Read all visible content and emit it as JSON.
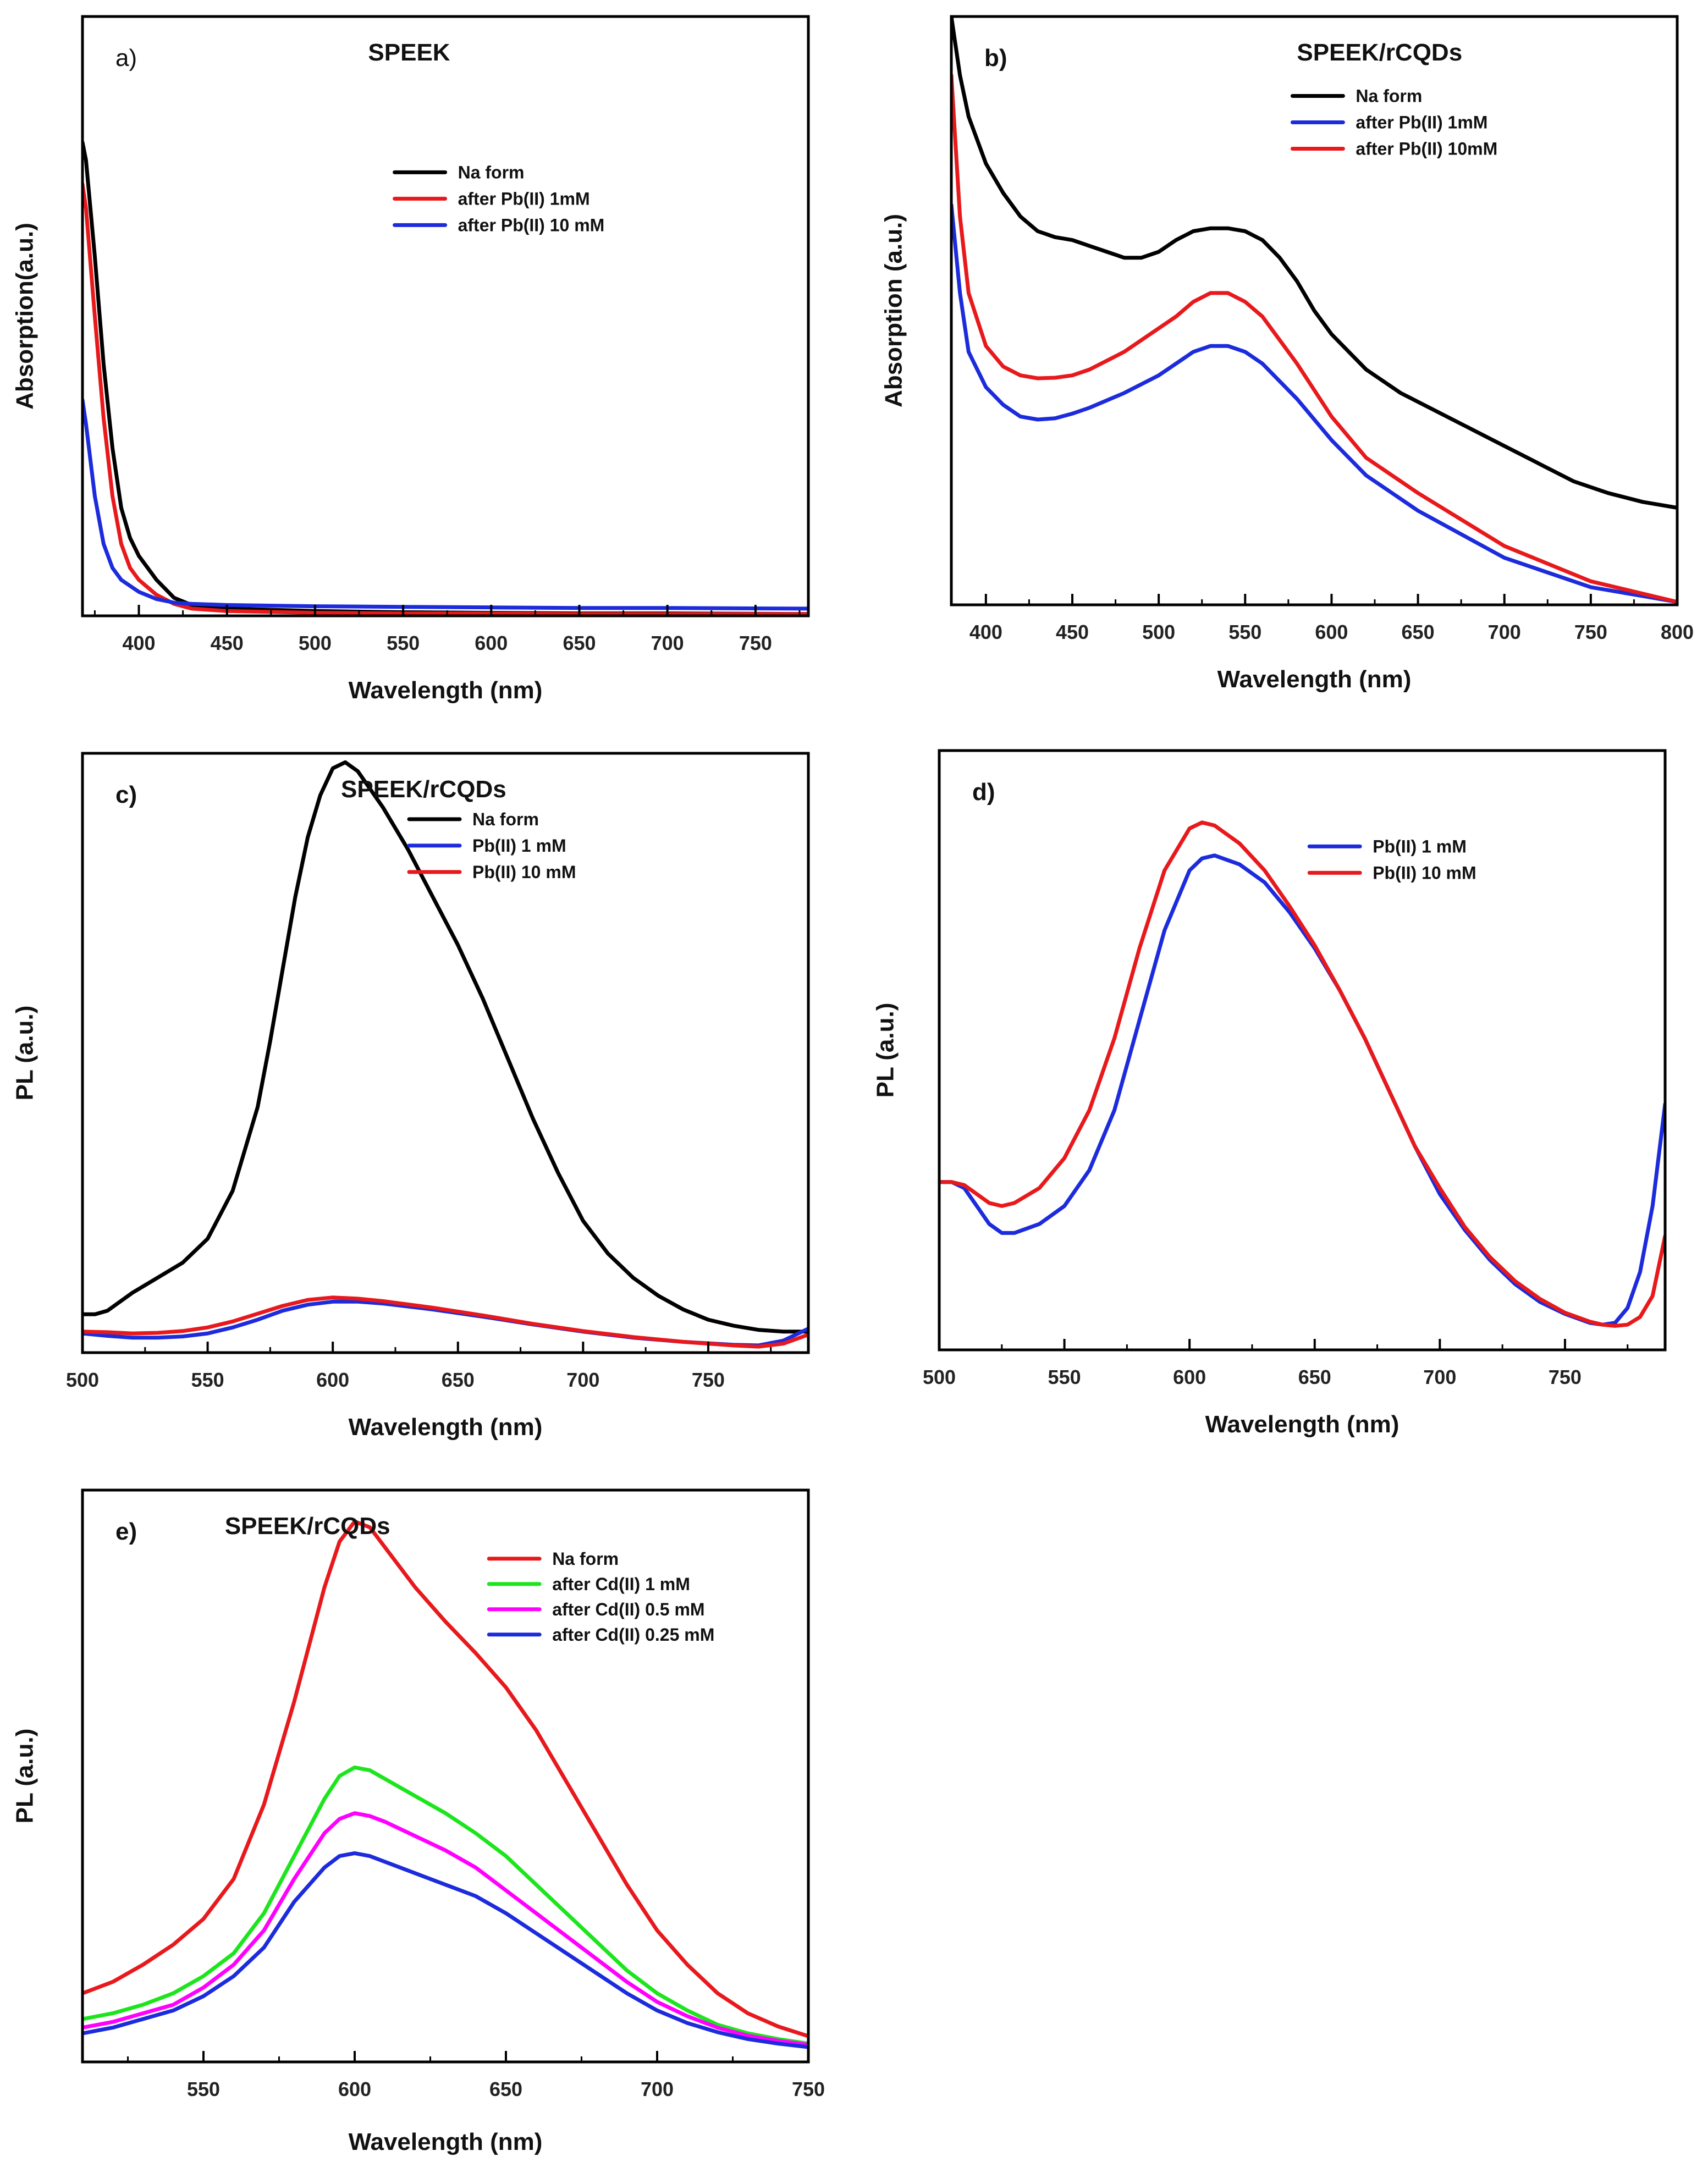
{
  "chart_data": [
    {
      "id": "a",
      "type": "line",
      "panel_letter": "a)",
      "title": "SPEEK",
      "xlabel": "Wavelength (nm)",
      "ylabel": "Absorption(a.u.)",
      "xlim": [
        368,
        780
      ],
      "ylim": [
        0,
        1.0
      ],
      "xticks": [
        400,
        450,
        500,
        550,
        600,
        650,
        700,
        750
      ],
      "legend_position": "top-center",
      "series": [
        {
          "name": "Na form",
          "color": "#000000",
          "x": [
            368,
            370,
            375,
            380,
            385,
            390,
            395,
            400,
            410,
            420,
            430,
            450,
            500,
            550,
            600,
            650,
            700,
            780
          ],
          "y": [
            0.79,
            0.76,
            0.6,
            0.42,
            0.28,
            0.18,
            0.13,
            0.1,
            0.06,
            0.03,
            0.018,
            0.012,
            0.008,
            0.006,
            0.005,
            0.004,
            0.004,
            0.003
          ]
        },
        {
          "name": "after Pb(II) 1mM",
          "color": "#e8191c",
          "x": [
            368,
            370,
            375,
            380,
            385,
            390,
            395,
            400,
            410,
            420,
            430,
            450,
            500,
            550,
            600,
            650,
            700,
            780
          ],
          "y": [
            0.72,
            0.68,
            0.5,
            0.33,
            0.2,
            0.12,
            0.08,
            0.06,
            0.035,
            0.02,
            0.012,
            0.008,
            0.005,
            0.004,
            0.004,
            0.003,
            0.003,
            0.003
          ]
        },
        {
          "name": "after Pb(II) 10 mM",
          "color": "#1c2bdc",
          "x": [
            368,
            370,
            375,
            380,
            385,
            390,
            395,
            400,
            410,
            420,
            430,
            450,
            500,
            550,
            600,
            650,
            700,
            780
          ],
          "y": [
            0.36,
            0.32,
            0.2,
            0.12,
            0.08,
            0.06,
            0.05,
            0.04,
            0.028,
            0.022,
            0.02,
            0.018,
            0.016,
            0.015,
            0.014,
            0.013,
            0.013,
            0.012
          ]
        }
      ]
    },
    {
      "id": "b",
      "type": "line",
      "panel_letter": "b)",
      "title": "SPEEK/rCQDs",
      "xlabel": "Wavelength (nm)",
      "ylabel": "Absorption (a.u.)",
      "xlim": [
        380,
        800
      ],
      "ylim": [
        0,
        1.0
      ],
      "xticks": [
        400,
        450,
        500,
        550,
        600,
        650,
        700,
        750,
        800
      ],
      "legend_position": "top-center",
      "series": [
        {
          "name": "Na form",
          "color": "#000000",
          "x": [
            380,
            385,
            390,
            400,
            410,
            420,
            430,
            440,
            450,
            460,
            470,
            480,
            490,
            500,
            510,
            520,
            530,
            540,
            550,
            560,
            570,
            580,
            590,
            600,
            620,
            640,
            660,
            680,
            700,
            720,
            740,
            760,
            780,
            800
          ],
          "y": [
            1.0,
            0.9,
            0.83,
            0.75,
            0.7,
            0.66,
            0.635,
            0.625,
            0.62,
            0.61,
            0.6,
            0.59,
            0.59,
            0.6,
            0.62,
            0.635,
            0.64,
            0.64,
            0.635,
            0.62,
            0.59,
            0.55,
            0.5,
            0.46,
            0.4,
            0.36,
            0.33,
            0.3,
            0.27,
            0.24,
            0.21,
            0.19,
            0.175,
            0.165
          ]
        },
        {
          "name": "after Pb(II) 1mM",
          "color": "#1c2bdc",
          "x": [
            380,
            385,
            390,
            400,
            410,
            420,
            430,
            440,
            450,
            460,
            480,
            500,
            510,
            520,
            530,
            540,
            550,
            560,
            580,
            600,
            620,
            650,
            700,
            750,
            800
          ],
          "y": [
            0.68,
            0.53,
            0.43,
            0.37,
            0.34,
            0.32,
            0.315,
            0.317,
            0.325,
            0.335,
            0.36,
            0.39,
            0.41,
            0.43,
            0.44,
            0.44,
            0.43,
            0.41,
            0.35,
            0.28,
            0.22,
            0.16,
            0.08,
            0.03,
            0.005
          ]
        },
        {
          "name": "after Pb(II) 10mM",
          "color": "#e8191c",
          "x": [
            380,
            385,
            390,
            400,
            410,
            420,
            430,
            440,
            450,
            460,
            480,
            500,
            510,
            520,
            530,
            540,
            550,
            560,
            580,
            600,
            620,
            650,
            700,
            750,
            800
          ],
          "y": [
            0.9,
            0.66,
            0.53,
            0.44,
            0.405,
            0.39,
            0.385,
            0.386,
            0.39,
            0.4,
            0.43,
            0.47,
            0.49,
            0.515,
            0.53,
            0.53,
            0.515,
            0.49,
            0.41,
            0.32,
            0.25,
            0.19,
            0.1,
            0.04,
            0.005
          ]
        }
      ]
    },
    {
      "id": "c",
      "type": "line",
      "panel_letter": "c)",
      "title": "SPEEK/rCQDs",
      "xlabel": "Wavelength (nm)",
      "ylabel": "PL (a.u.)",
      "xlim": [
        500,
        790
      ],
      "ylim": [
        0,
        1.0
      ],
      "xticks": [
        500,
        550,
        600,
        650,
        700,
        750
      ],
      "legend_position": "top-center",
      "series": [
        {
          "name": "Na form",
          "color": "#000000",
          "x": [
            500,
            505,
            510,
            520,
            530,
            540,
            550,
            560,
            570,
            575,
            580,
            585,
            590,
            595,
            600,
            605,
            610,
            620,
            630,
            640,
            650,
            660,
            670,
            680,
            690,
            700,
            710,
            720,
            730,
            740,
            750,
            760,
            770,
            780,
            790
          ],
          "y": [
            0.064,
            0.064,
            0.07,
            0.1,
            0.125,
            0.15,
            0.19,
            0.27,
            0.41,
            0.52,
            0.64,
            0.76,
            0.86,
            0.93,
            0.975,
            0.985,
            0.97,
            0.91,
            0.84,
            0.76,
            0.68,
            0.59,
            0.49,
            0.39,
            0.3,
            0.22,
            0.165,
            0.125,
            0.095,
            0.072,
            0.055,
            0.045,
            0.038,
            0.035,
            0.035
          ]
        },
        {
          "name": "Pb(II) 1 mM",
          "color": "#1c2bdc",
          "x": [
            500,
            510,
            520,
            530,
            540,
            550,
            560,
            570,
            580,
            590,
            600,
            610,
            620,
            640,
            660,
            680,
            700,
            720,
            740,
            760,
            770,
            780,
            790
          ],
          "y": [
            0.032,
            0.028,
            0.025,
            0.025,
            0.027,
            0.032,
            0.042,
            0.055,
            0.07,
            0.08,
            0.085,
            0.085,
            0.082,
            0.072,
            0.06,
            0.047,
            0.035,
            0.025,
            0.018,
            0.013,
            0.012,
            0.02,
            0.04
          ]
        },
        {
          "name": "Pb(II) 10 mM",
          "color": "#e8191c",
          "x": [
            500,
            510,
            520,
            530,
            540,
            550,
            560,
            570,
            580,
            590,
            600,
            610,
            620,
            640,
            660,
            680,
            700,
            720,
            740,
            760,
            770,
            780,
            790
          ],
          "y": [
            0.035,
            0.034,
            0.032,
            0.033,
            0.036,
            0.042,
            0.052,
            0.065,
            0.078,
            0.088,
            0.092,
            0.09,
            0.086,
            0.075,
            0.062,
            0.048,
            0.036,
            0.026,
            0.018,
            0.012,
            0.01,
            0.015,
            0.03
          ]
        }
      ]
    },
    {
      "id": "d",
      "type": "line",
      "panel_letter": "d)",
      "title": "",
      "xlabel": "Wavelength (nm)",
      "ylabel": "PL (a.u.)",
      "xlim": [
        500,
        790
      ],
      "ylim": [
        0,
        1.0
      ],
      "xticks": [
        500,
        550,
        600,
        650,
        700,
        750
      ],
      "legend_position": "top-center",
      "series": [
        {
          "name": "Pb(II) 1 mM",
          "color": "#1c2bdc",
          "x": [
            500,
            505,
            510,
            515,
            520,
            525,
            530,
            540,
            550,
            560,
            570,
            580,
            590,
            600,
            605,
            610,
            620,
            630,
            640,
            650,
            660,
            670,
            680,
            690,
            700,
            710,
            720,
            730,
            740,
            750,
            760,
            765,
            770,
            775,
            780,
            785,
            790
          ],
          "y": [
            0.28,
            0.28,
            0.27,
            0.24,
            0.21,
            0.195,
            0.195,
            0.21,
            0.24,
            0.3,
            0.4,
            0.55,
            0.7,
            0.8,
            0.82,
            0.825,
            0.81,
            0.78,
            0.73,
            0.67,
            0.6,
            0.52,
            0.43,
            0.34,
            0.26,
            0.2,
            0.15,
            0.11,
            0.08,
            0.06,
            0.045,
            0.042,
            0.045,
            0.07,
            0.13,
            0.24,
            0.41
          ]
        },
        {
          "name": "Pb(II) 10 mM",
          "color": "#e8191c",
          "x": [
            500,
            505,
            510,
            515,
            520,
            525,
            530,
            540,
            550,
            560,
            570,
            580,
            590,
            600,
            605,
            610,
            620,
            630,
            640,
            650,
            660,
            670,
            680,
            690,
            700,
            710,
            720,
            730,
            740,
            750,
            760,
            765,
            770,
            775,
            780,
            785,
            790
          ],
          "y": [
            0.28,
            0.28,
            0.275,
            0.26,
            0.245,
            0.24,
            0.245,
            0.27,
            0.32,
            0.4,
            0.52,
            0.67,
            0.8,
            0.87,
            0.88,
            0.875,
            0.845,
            0.8,
            0.74,
            0.675,
            0.6,
            0.52,
            0.43,
            0.34,
            0.27,
            0.205,
            0.155,
            0.115,
            0.085,
            0.062,
            0.047,
            0.042,
            0.04,
            0.042,
            0.055,
            0.09,
            0.19
          ]
        }
      ]
    },
    {
      "id": "e",
      "type": "line",
      "panel_letter": "e)",
      "title": "SPEEK/rCQDs",
      "xlabel": "Wavelength (nm)",
      "ylabel": "PL (a.u.)",
      "xlim": [
        510,
        750
      ],
      "ylim": [
        0,
        1.0
      ],
      "xticks": [
        550,
        600,
        650,
        700,
        750
      ],
      "legend_position": "top-right",
      "series": [
        {
          "name": "Na form",
          "color": "#e8191c",
          "x": [
            510,
            520,
            530,
            540,
            550,
            560,
            570,
            580,
            590,
            595,
            600,
            605,
            610,
            620,
            630,
            640,
            650,
            660,
            670,
            680,
            690,
            700,
            710,
            720,
            730,
            740,
            750
          ],
          "y": [
            0.12,
            0.14,
            0.17,
            0.205,
            0.25,
            0.32,
            0.45,
            0.63,
            0.83,
            0.91,
            0.945,
            0.935,
            0.9,
            0.83,
            0.77,
            0.715,
            0.655,
            0.58,
            0.49,
            0.4,
            0.31,
            0.23,
            0.17,
            0.12,
            0.085,
            0.062,
            0.045
          ]
        },
        {
          "name": "after Cd(II) 1 mM",
          "color": "#1de51d",
          "x": [
            510,
            520,
            530,
            540,
            550,
            560,
            570,
            580,
            590,
            595,
            600,
            605,
            610,
            620,
            630,
            640,
            650,
            660,
            670,
            680,
            690,
            700,
            710,
            720,
            730,
            740,
            750
          ],
          "y": [
            0.075,
            0.085,
            0.1,
            0.12,
            0.15,
            0.19,
            0.26,
            0.36,
            0.46,
            0.5,
            0.515,
            0.51,
            0.495,
            0.465,
            0.435,
            0.4,
            0.36,
            0.31,
            0.26,
            0.21,
            0.16,
            0.12,
            0.09,
            0.065,
            0.05,
            0.04,
            0.032
          ]
        },
        {
          "name": "after Cd(II) 0.5 mM",
          "color": "#ff00ff",
          "x": [
            510,
            520,
            530,
            540,
            550,
            560,
            570,
            580,
            590,
            595,
            600,
            605,
            610,
            620,
            630,
            640,
            650,
            660,
            670,
            680,
            690,
            700,
            710,
            720,
            730,
            740,
            750
          ],
          "y": [
            0.06,
            0.07,
            0.085,
            0.1,
            0.13,
            0.17,
            0.23,
            0.32,
            0.4,
            0.425,
            0.435,
            0.43,
            0.42,
            0.395,
            0.37,
            0.34,
            0.3,
            0.26,
            0.22,
            0.18,
            0.14,
            0.105,
            0.08,
            0.06,
            0.046,
            0.037,
            0.03
          ]
        },
        {
          "name": "after Cd(II) 0.25 mM",
          "color": "#1c2bdc",
          "x": [
            510,
            520,
            530,
            540,
            550,
            560,
            570,
            580,
            590,
            595,
            600,
            605,
            610,
            620,
            630,
            640,
            650,
            660,
            670,
            680,
            690,
            700,
            710,
            720,
            730,
            740,
            750
          ],
          "y": [
            0.05,
            0.06,
            0.075,
            0.09,
            0.115,
            0.15,
            0.2,
            0.28,
            0.34,
            0.36,
            0.365,
            0.36,
            0.35,
            0.33,
            0.31,
            0.29,
            0.26,
            0.225,
            0.19,
            0.155,
            0.12,
            0.09,
            0.068,
            0.052,
            0.04,
            0.032,
            0.026
          ]
        }
      ]
    }
  ]
}
